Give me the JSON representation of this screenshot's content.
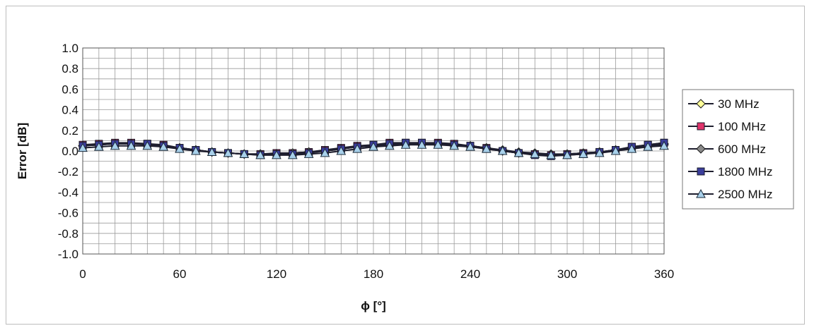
{
  "chart_data": {
    "type": "line",
    "title": "",
    "xlabel": "ϕ [°]",
    "ylabel": "Error [dB]",
    "xlim": [
      0,
      360
    ],
    "ylim": [
      -1.0,
      1.0
    ],
    "xticks": [
      0,
      60,
      120,
      180,
      240,
      300,
      360
    ],
    "yticks": [
      -1.0,
      -0.8,
      -0.6,
      -0.4,
      -0.2,
      0.0,
      0.2,
      0.4,
      0.6,
      0.8,
      1.0
    ],
    "ytick_labels": [
      "-1.0",
      "-0.8",
      "-0.6",
      "-0.4",
      "-0.2",
      "0.0",
      "0.2",
      "0.4",
      "0.6",
      "0.8",
      "1.0"
    ],
    "grid": true,
    "legend_position": "right",
    "x": [
      0,
      10,
      20,
      30,
      40,
      50,
      60,
      70,
      80,
      90,
      100,
      110,
      120,
      130,
      140,
      150,
      160,
      170,
      180,
      190,
      200,
      210,
      220,
      230,
      240,
      250,
      260,
      270,
      280,
      290,
      300,
      310,
      320,
      330,
      340,
      350,
      360
    ],
    "series": [
      {
        "name": "30 MHz",
        "color": "#ffff99",
        "marker": "diamond",
        "values": [
          0.05,
          0.06,
          0.07,
          0.07,
          0.06,
          0.05,
          0.03,
          0.01,
          -0.01,
          -0.02,
          -0.03,
          -0.03,
          -0.03,
          -0.02,
          -0.01,
          0.0,
          0.02,
          0.04,
          0.05,
          0.06,
          0.07,
          0.07,
          0.07,
          0.06,
          0.05,
          0.03,
          0.01,
          -0.01,
          -0.02,
          -0.03,
          -0.03,
          -0.02,
          -0.01,
          0.01,
          0.03,
          0.05,
          0.06
        ]
      },
      {
        "name": "100 MHz",
        "color": "#e0336a",
        "marker": "square",
        "values": [
          0.06,
          0.07,
          0.08,
          0.08,
          0.07,
          0.06,
          0.03,
          0.01,
          -0.01,
          -0.02,
          -0.03,
          -0.03,
          -0.02,
          -0.02,
          -0.01,
          0.01,
          0.03,
          0.05,
          0.06,
          0.08,
          0.08,
          0.08,
          0.08,
          0.07,
          0.05,
          0.03,
          0.0,
          -0.02,
          -0.03,
          -0.04,
          -0.03,
          -0.02,
          -0.01,
          0.01,
          0.04,
          0.06,
          0.08
        ]
      },
      {
        "name": "600 MHz",
        "color": "#8a8a8a",
        "marker": "diamond",
        "values": [
          0.05,
          0.06,
          0.07,
          0.07,
          0.06,
          0.05,
          0.03,
          0.01,
          -0.01,
          -0.02,
          -0.03,
          -0.03,
          -0.03,
          -0.02,
          -0.01,
          0.0,
          0.02,
          0.04,
          0.05,
          0.07,
          0.07,
          0.07,
          0.07,
          0.06,
          0.05,
          0.03,
          0.0,
          -0.02,
          -0.03,
          -0.04,
          -0.03,
          -0.02,
          -0.01,
          0.01,
          0.03,
          0.05,
          0.07
        ]
      },
      {
        "name": "1800 MHz",
        "color": "#3b3e9c",
        "marker": "square",
        "values": [
          0.05,
          0.06,
          0.07,
          0.07,
          0.07,
          0.05,
          0.03,
          0.01,
          -0.01,
          -0.02,
          -0.03,
          -0.04,
          -0.03,
          -0.03,
          -0.02,
          0.0,
          0.02,
          0.04,
          0.06,
          0.07,
          0.08,
          0.08,
          0.07,
          0.06,
          0.05,
          0.02,
          0.0,
          -0.02,
          -0.04,
          -0.05,
          -0.04,
          -0.03,
          -0.01,
          0.01,
          0.04,
          0.06,
          0.08
        ]
      },
      {
        "name": "2500 MHz",
        "color": "#a8d0ea",
        "marker": "triangle",
        "values": [
          0.03,
          0.04,
          0.05,
          0.05,
          0.05,
          0.04,
          0.02,
          0.0,
          -0.01,
          -0.02,
          -0.03,
          -0.04,
          -0.04,
          -0.04,
          -0.03,
          -0.02,
          0.0,
          0.02,
          0.04,
          0.05,
          0.06,
          0.06,
          0.06,
          0.05,
          0.04,
          0.02,
          0.0,
          -0.02,
          -0.03,
          -0.04,
          -0.04,
          -0.03,
          -0.02,
          0.0,
          0.02,
          0.04,
          0.05
        ]
      }
    ]
  }
}
